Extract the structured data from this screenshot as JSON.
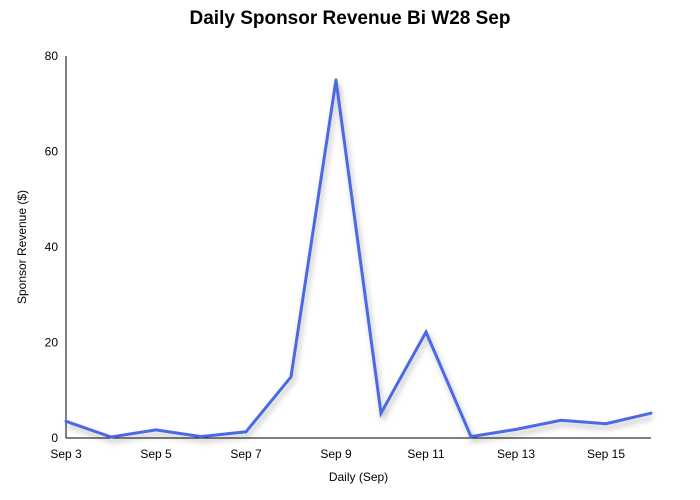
{
  "chart_data": {
    "type": "line",
    "title": "Daily Sponsor Revenue Bi W28 Sep",
    "xlabel": "Daily (Sep)",
    "ylabel": "Sponsor Revenue ($)",
    "ylim": [
      0,
      80
    ],
    "yticks": [
      0,
      20,
      40,
      60,
      80
    ],
    "xlim": [
      "Sep 3",
      "Sep 16"
    ],
    "x_tick_labels": [
      "Sep 3",
      "Sep 5",
      "Sep 7",
      "Sep 9",
      "Sep 11",
      "Sep 13",
      "Sep 15"
    ],
    "grid": false,
    "series": [
      {
        "color": "#4a69e6",
        "x": [
          "Sep 3",
          "Sep 4",
          "Sep 5",
          "Sep 6",
          "Sep 7",
          "Sep 8",
          "Sep 9",
          "Sep 10",
          "Sep 11",
          "Sep 12",
          "Sep 13",
          "Sep 14",
          "Sep 15",
          "Sep 16"
        ],
        "values": [
          3.5,
          0.2,
          1.7,
          0.3,
          1.3,
          12.8,
          75.0,
          5.2,
          22.2,
          0.3,
          1.8,
          3.7,
          3.0,
          5.2
        ]
      }
    ]
  }
}
